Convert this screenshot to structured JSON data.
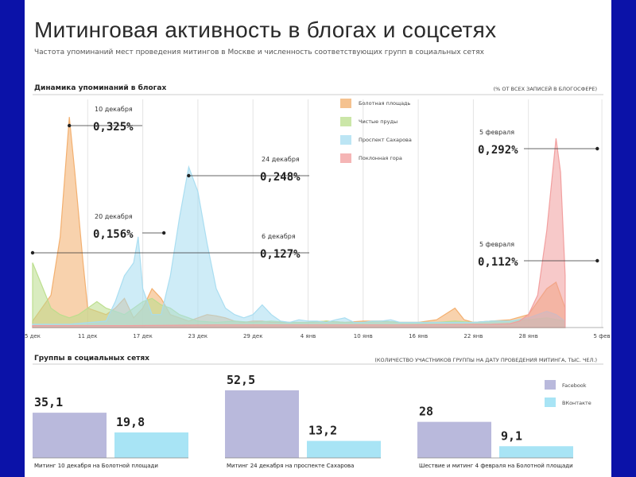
{
  "title": "Митинговая активность в блогах и соцсетях",
  "subtitle": "Частота упоминаний мест проведения митингов в Москве и численность соответствующих групп в социальных сетях",
  "chart_data": [
    {
      "type": "area",
      "title": "Динамика упоминаний в блогах",
      "unit_note": "(% от всех записей в блогосфере)",
      "x_ticks": [
        "5 дек",
        "11 дек",
        "17 дек",
        "23 дек",
        "29 дек",
        "4 янв",
        "10 янв",
        "16 янв",
        "22 янв",
        "28 янв",
        "5 фев"
      ],
      "ylim": [
        0,
        0.34
      ],
      "series": [
        {
          "name": "Болотная площадь",
          "color": "#f2ad6a",
          "points": [
            [
              0,
              0.01
            ],
            [
              2,
              0.05
            ],
            [
              3,
              0.14
            ],
            [
              4,
              0.325
            ],
            [
              4.6,
              0.24
            ],
            [
              5.5,
              0.1
            ],
            [
              6,
              0.03
            ],
            [
              7,
              0.025
            ],
            [
              8,
              0.02
            ],
            [
              9,
              0.03
            ],
            [
              10,
              0.045
            ],
            [
              11,
              0.015
            ],
            [
              12,
              0.03
            ],
            [
              13,
              0.06
            ],
            [
              14,
              0.045
            ],
            [
              15,
              0.02
            ],
            [
              16,
              0.015
            ],
            [
              17,
              0.01
            ],
            [
              18,
              0.015
            ],
            [
              19,
              0.02
            ],
            [
              20,
              0.018
            ],
            [
              21,
              0.015
            ],
            [
              22,
              0.01
            ],
            [
              23,
              0.008
            ],
            [
              24,
              0.01
            ],
            [
              25,
              0.01
            ],
            [
              26,
              0.008
            ],
            [
              28,
              0.008
            ],
            [
              30,
              0.008
            ],
            [
              32,
              0.01
            ],
            [
              34,
              0.008
            ],
            [
              36,
              0.01
            ],
            [
              38,
              0.01
            ],
            [
              40,
              0.008
            ],
            [
              42,
              0.008
            ],
            [
              44,
              0.012
            ],
            [
              46,
              0.03
            ],
            [
              47,
              0.012
            ],
            [
              48,
              0.008
            ],
            [
              50,
              0.01
            ],
            [
              52,
              0.012
            ],
            [
              54,
              0.02
            ],
            [
              55,
              0.04
            ],
            [
              56,
              0.06
            ],
            [
              57,
              0.07
            ],
            [
              58,
              0.03
            ]
          ]
        },
        {
          "name": "Чистые пруды",
          "color": "#b9dd8b",
          "points": [
            [
              0,
              0.1
            ],
            [
              1,
              0.065
            ],
            [
              2,
              0.03
            ],
            [
              3,
              0.02
            ],
            [
              4,
              0.015
            ],
            [
              5,
              0.02
            ],
            [
              6,
              0.03
            ],
            [
              7,
              0.04
            ],
            [
              8,
              0.03
            ],
            [
              9,
              0.025
            ],
            [
              10,
              0.02
            ],
            [
              11,
              0.03
            ],
            [
              12,
              0.04
            ],
            [
              13,
              0.045
            ],
            [
              14,
              0.035
            ],
            [
              15,
              0.03
            ],
            [
              16,
              0.02
            ],
            [
              17,
              0.015
            ],
            [
              18,
              0.01
            ],
            [
              20,
              0.008
            ],
            [
              22,
              0.01
            ],
            [
              24,
              0.008
            ],
            [
              26,
              0.01
            ],
            [
              28,
              0.008
            ],
            [
              30,
              0.008
            ],
            [
              32,
              0.01
            ],
            [
              34,
              0.008
            ],
            [
              36,
              0.008
            ],
            [
              38,
              0.01
            ],
            [
              40,
              0.008
            ],
            [
              42,
              0.008
            ],
            [
              44,
              0.008
            ],
            [
              46,
              0.01
            ],
            [
              48,
              0.008
            ],
            [
              50,
              0.01
            ],
            [
              52,
              0.01
            ],
            [
              54,
              0.012
            ],
            [
              56,
              0.015
            ],
            [
              58,
              0.01
            ]
          ]
        },
        {
          "name": "Проспект Сахарова",
          "color": "#a6dcf0",
          "points": [
            [
              0,
              0.005
            ],
            [
              4,
              0.005
            ],
            [
              8,
              0.01
            ],
            [
              9,
              0.04
            ],
            [
              10,
              0.08
            ],
            [
              11,
              0.1
            ],
            [
              11.5,
              0.14
            ],
            [
              12,
              0.06
            ],
            [
              13,
              0.02
            ],
            [
              14,
              0.02
            ],
            [
              15,
              0.08
            ],
            [
              16,
              0.17
            ],
            [
              17,
              0.248
            ],
            [
              18,
              0.21
            ],
            [
              19,
              0.13
            ],
            [
              20,
              0.06
            ],
            [
              21,
              0.03
            ],
            [
              22,
              0.02
            ],
            [
              23,
              0.015
            ],
            [
              24,
              0.02
            ],
            [
              25,
              0.035
            ],
            [
              26,
              0.02
            ],
            [
              27,
              0.01
            ],
            [
              28,
              0.008
            ],
            [
              29,
              0.012
            ],
            [
              30,
              0.01
            ],
            [
              31,
              0.01
            ],
            [
              32,
              0.008
            ],
            [
              33,
              0.012
            ],
            [
              34,
              0.015
            ],
            [
              35,
              0.008
            ],
            [
              36,
              0.008
            ],
            [
              37,
              0.01
            ],
            [
              38,
              0.01
            ],
            [
              39,
              0.012
            ],
            [
              40,
              0.008
            ],
            [
              42,
              0.008
            ],
            [
              44,
              0.008
            ],
            [
              46,
              0.008
            ],
            [
              48,
              0.008
            ],
            [
              50,
              0.01
            ],
            [
              52,
              0.01
            ],
            [
              54,
              0.015
            ],
            [
              55,
              0.02
            ],
            [
              56,
              0.025
            ],
            [
              57,
              0.02
            ],
            [
              58,
              0.01
            ]
          ]
        },
        {
          "name": "Поклонная гора",
          "color": "#f19c9c",
          "points": [
            [
              0,
              0.003
            ],
            [
              10,
              0.003
            ],
            [
              20,
              0.004
            ],
            [
              30,
              0.004
            ],
            [
              40,
              0.004
            ],
            [
              50,
              0.005
            ],
            [
              52,
              0.006
            ],
            [
              53,
              0.01
            ],
            [
              54,
              0.02
            ],
            [
              55,
              0.05
            ],
            [
              56,
              0.15
            ],
            [
              57,
              0.292
            ],
            [
              57.5,
              0.24
            ],
            [
              58,
              0.08
            ]
          ]
        }
      ],
      "callouts": [
        {
          "date": "10 декабря",
          "value": "0,325%"
        },
        {
          "date": "20 декабря",
          "value": "0,156%"
        },
        {
          "date": "24 декабря",
          "value": "0,248%"
        },
        {
          "date": "6 декабря",
          "value": "0,127%"
        },
        {
          "date": "5 февраля",
          "value": "0,292%"
        },
        {
          "date": "5 февраля",
          "value": "0,112%"
        }
      ]
    },
    {
      "type": "bar",
      "title": "Группы в социальных сетях",
      "unit_note": "(Количество участников группы на дату проведения митинга, тыс. чел.)",
      "categories": [
        "Митинг 10 декабря на Болотной площади",
        "Митинг 24 декабря на проспекте Сахарова",
        "Шествие и митинг 4 февраля на Болотной площади"
      ],
      "series": [
        {
          "name": "Facebook",
          "color": "#b9b9dc",
          "values": [
            35.1,
            52.5,
            28
          ],
          "labels": [
            "35,1",
            "52,5",
            "28"
          ]
        },
        {
          "name": "ВКонтакте",
          "color": "#a8e4f5",
          "values": [
            19.8,
            13.2,
            9.1
          ],
          "labels": [
            "19,8",
            "13,2",
            "9,1"
          ]
        }
      ]
    }
  ]
}
